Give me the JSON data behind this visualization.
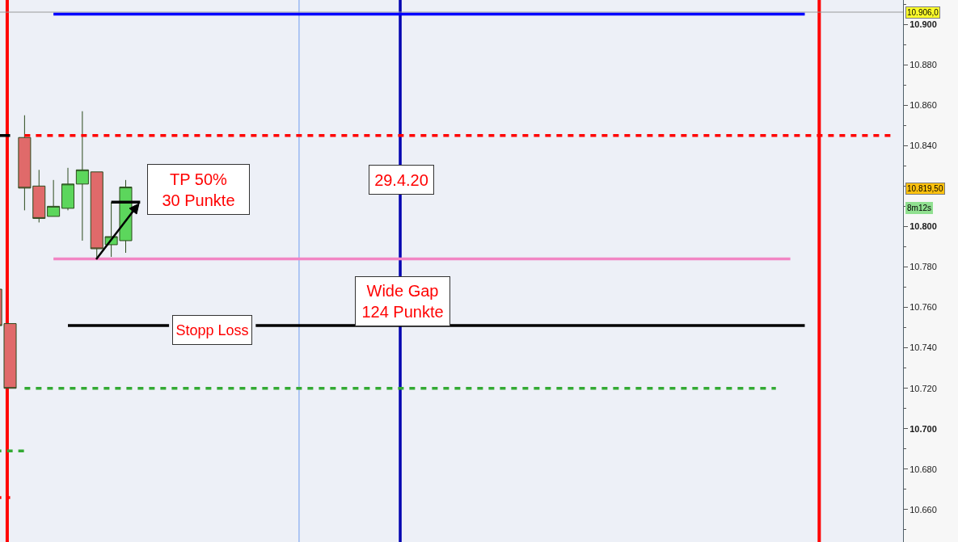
{
  "chart_data": {
    "type": "candlestick",
    "categories": [
      null,
      null,
      null,
      null,
      null,
      null,
      null,
      null,
      null,
      null,
      null,
      null,
      null,
      null,
      null,
      null,
      null,
      null,
      null,
      null,
      null,
      null,
      null,
      null,
      null,
      null,
      null,
      null,
      null,
      null,
      null,
      null,
      null,
      null,
      null,
      null,
      null,
      null,
      null,
      null,
      null,
      null,
      null,
      null,
      null,
      null,
      null,
      null,
      null,
      null,
      null,
      null,
      null,
      null,
      null,
      null,
      null,
      null,
      null,
      null,
      null,
      null,
      null
    ],
    "ohlc": [
      [
        10769,
        10769,
        10751,
        10751
      ],
      [
        10752,
        10752,
        10720,
        10720
      ],
      [
        10844,
        10855,
        10808,
        10819
      ],
      [
        10820,
        10828,
        10802,
        10804
      ],
      [
        10805,
        10823,
        10805,
        10810
      ],
      [
        10809,
        10829,
        10808,
        10821
      ],
      [
        10821,
        10857,
        10793,
        10828
      ],
      [
        10827,
        10827,
        10784,
        10789
      ],
      [
        10791,
        10812,
        10785,
        10795
      ],
      [
        10793,
        10823,
        10787,
        10819.5
      ],
      null,
      null,
      null,
      null,
      null,
      null,
      null,
      null,
      null,
      null,
      null,
      null,
      null,
      null,
      null,
      null,
      null,
      null,
      null,
      null,
      null,
      null,
      null,
      null,
      null,
      null,
      null,
      null,
      null,
      null,
      null,
      null,
      null,
      null,
      null,
      null,
      null,
      null,
      null,
      null,
      null,
      null,
      null,
      null,
      null,
      null,
      null,
      null,
      null,
      null,
      null,
      null,
      null
    ],
    "colors": [
      "#e06a6a",
      "#e06a6a",
      "#e06a6a",
      "#e06a6a",
      "#5cd65c",
      "#5cd65c",
      "#5cd65c",
      "#e06a6a",
      "#5cd65c",
      "#5cd65c",
      null,
      null,
      null,
      null,
      null,
      null,
      null,
      null,
      null,
      null,
      null,
      null,
      null,
      null,
      null,
      null,
      null,
      null,
      null,
      null,
      null,
      null,
      null,
      null,
      null,
      null,
      null,
      null,
      null,
      null,
      null,
      null,
      null,
      null,
      null,
      null,
      null,
      null,
      null,
      null,
      null,
      null,
      null,
      null,
      null,
      null,
      null,
      null,
      null,
      null,
      null,
      null,
      null
    ],
    "series": [
      {
        "type": "line",
        "color": "#0000ff",
        "line_style": "solid",
        "values": [
          null,
          null,
          null,
          null,
          10905,
          10905,
          10905,
          10905,
          10905,
          10905,
          10905,
          10905,
          10905,
          10905,
          10905,
          10905,
          10905,
          10905,
          10905,
          10905,
          10905,
          10905,
          10905,
          10905,
          10905,
          10905,
          10905,
          10905,
          10905,
          10905,
          10905,
          10905,
          10905,
          10905,
          10905,
          10905,
          10905,
          10905,
          10905,
          10905,
          10905,
          10905,
          10905,
          10905,
          10905,
          10905,
          10905,
          10905,
          10905,
          10905,
          10905,
          10905,
          10905,
          10905,
          10905,
          10905,
          10905,
          null,
          null,
          null,
          null,
          null,
          null
        ]
      },
      {
        "type": "line",
        "color": "#ff0000",
        "line_style": "dashed",
        "values": [
          null,
          null,
          10845,
          10845,
          10845,
          10845,
          10845,
          10845,
          10845,
          10845,
          10845,
          10845,
          10845,
          10845,
          10845,
          10845,
          10845,
          10845,
          10845,
          10845,
          10845,
          10845,
          10845,
          10845,
          10845,
          10845,
          10845,
          10845,
          10845,
          10845,
          10845,
          10845,
          10845,
          10845,
          10845,
          10845,
          10845,
          10845,
          10845,
          10845,
          10845,
          10845,
          10845,
          10845,
          10845,
          10845,
          10845,
          10845,
          10845,
          10845,
          10845,
          10845,
          10845,
          10845,
          10845,
          10845,
          10845,
          10845,
          10845,
          10845,
          10845,
          10845,
          10845
        ]
      },
      {
        "type": "line",
        "color": "#f285c4",
        "line_style": "solid",
        "values": [
          null,
          null,
          null,
          null,
          10784,
          10784,
          10784,
          10784,
          10784,
          10784,
          10784,
          10784,
          10784,
          10784,
          10784,
          10784,
          10784,
          10784,
          10784,
          10784,
          10784,
          10784,
          10784,
          10784,
          10784,
          10784,
          10784,
          10784,
          10784,
          10784,
          10784,
          10784,
          10784,
          10784,
          10784,
          10784,
          10784,
          10784,
          10784,
          10784,
          10784,
          10784,
          10784,
          10784,
          10784,
          10784,
          10784,
          10784,
          10784,
          10784,
          10784,
          10784,
          10784,
          10784,
          10784,
          10784,
          null,
          null,
          null,
          null,
          null,
          null,
          null
        ]
      },
      {
        "type": "line",
        "color": "#000000",
        "line_style": "solid",
        "values": [
          null,
          null,
          null,
          null,
          null,
          10751,
          10751,
          10751,
          10751,
          10751,
          10751,
          10751,
          10751,
          null,
          null,
          null,
          null,
          null,
          10751,
          10751,
          10751,
          10751,
          10751,
          10751,
          10751,
          10751,
          10751,
          10751,
          10751,
          10751,
          10751,
          10751,
          10751,
          10751,
          10751,
          10751,
          10751,
          10751,
          10751,
          10751,
          10751,
          10751,
          10751,
          10751,
          10751,
          10751,
          10751,
          10751,
          10751,
          10751,
          10751,
          10751,
          10751,
          10751,
          10751,
          10751,
          10751,
          null,
          null,
          null,
          null,
          null,
          null
        ]
      },
      {
        "type": "line",
        "color": "#33aa33",
        "line_style": "dashed",
        "values": [
          null,
          null,
          10720,
          10720,
          10720,
          10720,
          10720,
          10720,
          10720,
          10720,
          10720,
          10720,
          10720,
          10720,
          10720,
          10720,
          10720,
          10720,
          10720,
          10720,
          10720,
          10720,
          10720,
          10720,
          10720,
          10720,
          10720,
          10720,
          10720,
          10720,
          10720,
          10720,
          10720,
          10720,
          10720,
          10720,
          10720,
          10720,
          10720,
          10720,
          10720,
          10720,
          10720,
          10720,
          10720,
          10720,
          10720,
          10720,
          10720,
          10720,
          10720,
          10720,
          10720,
          10720,
          10720,
          null,
          null,
          null,
          null,
          null,
          null,
          null,
          null
        ]
      },
      {
        "type": "line",
        "color": "#000000",
        "line_style": "solid",
        "values": [
          10845,
          10845,
          null,
          null,
          null,
          null,
          null,
          null,
          null,
          null,
          null,
          null,
          null,
          null,
          null,
          null,
          null,
          null,
          null,
          null,
          null,
          null,
          null,
          null,
          null,
          null,
          null,
          null,
          null,
          null,
          null,
          null,
          null,
          null,
          null,
          null,
          null,
          null,
          null,
          null,
          null,
          null,
          null,
          null,
          null,
          null,
          null,
          null,
          null,
          null,
          null,
          null,
          null,
          null,
          null,
          null,
          null,
          null,
          null,
          null,
          null,
          null,
          null
        ]
      },
      {
        "type": "line",
        "color": "#33aa33",
        "line_style": "dashed",
        "values": [
          10689,
          10689,
          10689,
          null,
          null,
          null,
          null,
          null,
          null,
          null,
          null,
          null,
          null,
          null,
          null,
          null,
          null,
          null,
          null,
          null,
          null,
          null,
          null,
          null,
          null,
          null,
          null,
          null,
          null,
          null,
          null,
          null,
          null,
          null,
          null,
          null,
          null,
          null,
          null,
          null,
          null,
          null,
          null,
          null,
          null,
          null,
          null,
          null,
          null,
          null,
          null,
          null,
          null,
          null,
          null,
          null,
          null,
          null,
          null,
          null,
          null,
          null,
          null
        ]
      },
      {
        "type": "line",
        "color": "#ff0000",
        "line_style": "dashed",
        "values": [
          10666,
          10666,
          null,
          null,
          null,
          null,
          null,
          null,
          null,
          null,
          null,
          null,
          null,
          null,
          null,
          null,
          null,
          null,
          null,
          null,
          null,
          null,
          null,
          null,
          null,
          null,
          null,
          null,
          null,
          null,
          null,
          null,
          null,
          null,
          null,
          null,
          null,
          null,
          null,
          null,
          null,
          null,
          null,
          null,
          null,
          null,
          null,
          null,
          null,
          null,
          null,
          null,
          null,
          null,
          null,
          null,
          null,
          null,
          null,
          null,
          null,
          null,
          null
        ]
      },
      {
        "type": "line",
        "color": "#000000",
        "line_style": "solid",
        "values": [
          null,
          null,
          null,
          null,
          null,
          null,
          null,
          null,
          10812,
          10812,
          10812,
          null,
          null,
          null,
          null,
          null,
          null,
          null,
          null,
          null,
          null,
          null,
          null,
          null,
          null,
          null,
          null,
          null,
          null,
          null,
          null,
          null,
          null,
          null,
          null,
          null,
          null,
          null,
          null,
          null,
          null,
          null,
          null,
          null,
          null,
          null,
          null,
          null,
          null,
          null,
          null,
          null,
          null,
          null,
          null,
          null,
          null,
          null,
          null,
          null,
          null,
          null,
          null
        ]
      }
    ],
    "ylim": [
      10644,
      10912
    ],
    "yticks": [
      {
        "value": 10660,
        "label": "10.660"
      },
      {
        "value": 10680,
        "label": "10.680"
      },
      {
        "value": 10700,
        "label": "10.700"
      },
      {
        "value": 10720,
        "label": "10.720"
      },
      {
        "value": 10740,
        "label": "10.740"
      },
      {
        "value": 10760,
        "label": "10.760"
      },
      {
        "value": 10780,
        "label": "10.780"
      },
      {
        "value": 10800,
        "label": "10.800"
      },
      {
        "value": 10820,
        "label": null
      },
      {
        "value": 10840,
        "label": "10.840"
      },
      {
        "value": 10860,
        "label": "10.860"
      },
      {
        "value": 10880,
        "label": "10.880"
      },
      {
        "value": 10900,
        "label": "10.900"
      }
    ],
    "ref_lines": [
      {
        "axis": "y",
        "value": 10906,
        "label": "10.906,0",
        "color": "#9a9a9a"
      }
    ],
    "annotations": [
      "TP 50%\n30 Punkte",
      "29.4.20",
      "Wide Gap\n124 Punkte",
      "Stopp Loss",
      "10.819,50",
      "8m12s"
    ]
  }
}
